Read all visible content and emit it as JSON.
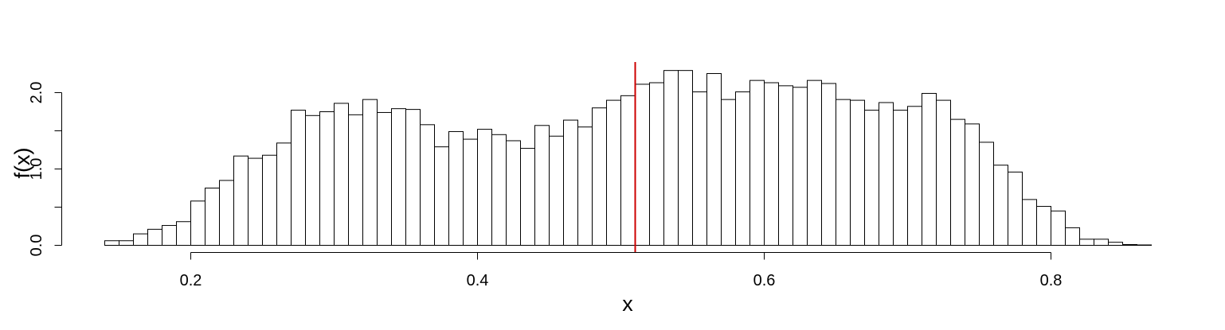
{
  "chart_data": {
    "type": "bar",
    "subtype": "histogram",
    "xlabel": "x",
    "ylabel": "f(x)",
    "xlim": [
      0.14,
      0.87
    ],
    "ylim": [
      0,
      2.4
    ],
    "x_ticks": [
      0.2,
      0.4,
      0.6,
      0.8
    ],
    "x_tick_labels": [
      "0.2",
      "0.4",
      "0.6",
      "0.8"
    ],
    "y_ticks": [
      0.0,
      0.5,
      1.0,
      1.5,
      2.0
    ],
    "y_tick_labels": [
      "0.0",
      "",
      "1.0",
      "",
      "2.0"
    ],
    "grid": false,
    "bin_width": 0.01,
    "bin_starts": [
      0.14,
      0.15,
      0.16,
      0.17,
      0.18,
      0.19,
      0.2,
      0.21,
      0.22,
      0.23,
      0.24,
      0.25,
      0.26,
      0.27,
      0.28,
      0.29,
      0.3,
      0.31,
      0.32,
      0.33,
      0.34,
      0.35,
      0.36,
      0.37,
      0.38,
      0.39,
      0.4,
      0.41,
      0.42,
      0.43,
      0.44,
      0.45,
      0.46,
      0.47,
      0.48,
      0.49,
      0.5,
      0.51,
      0.52,
      0.53,
      0.54,
      0.55,
      0.56,
      0.57,
      0.58,
      0.59,
      0.6,
      0.61,
      0.62,
      0.63,
      0.64,
      0.65,
      0.66,
      0.67,
      0.68,
      0.69,
      0.7,
      0.71,
      0.72,
      0.73,
      0.74,
      0.75,
      0.76,
      0.77,
      0.78,
      0.79,
      0.8,
      0.81,
      0.82,
      0.83,
      0.84,
      0.85,
      0.86
    ],
    "values": [
      0.06,
      0.06,
      0.15,
      0.21,
      0.26,
      0.31,
      0.58,
      0.75,
      0.85,
      1.17,
      1.14,
      1.18,
      1.34,
      1.77,
      1.7,
      1.75,
      1.86,
      1.71,
      1.91,
      1.74,
      1.79,
      1.78,
      1.58,
      1.29,
      1.49,
      1.39,
      1.52,
      1.45,
      1.37,
      1.27,
      1.57,
      1.43,
      1.64,
      1.55,
      1.8,
      1.9,
      1.96,
      2.11,
      2.13,
      2.29,
      2.29,
      2.01,
      2.25,
      1.91,
      2.01,
      2.16,
      2.13,
      2.09,
      2.07,
      2.16,
      2.12,
      1.91,
      1.9,
      1.77,
      1.87,
      1.77,
      1.82,
      1.99,
      1.9,
      1.65,
      1.59,
      1.35,
      1.05,
      0.96,
      0.6,
      0.51,
      0.45,
      0.23,
      0.08,
      0.08,
      0.04,
      0.01,
      0.005
    ],
    "reference_line": {
      "x": 0.51,
      "color": "#cc0000"
    }
  }
}
